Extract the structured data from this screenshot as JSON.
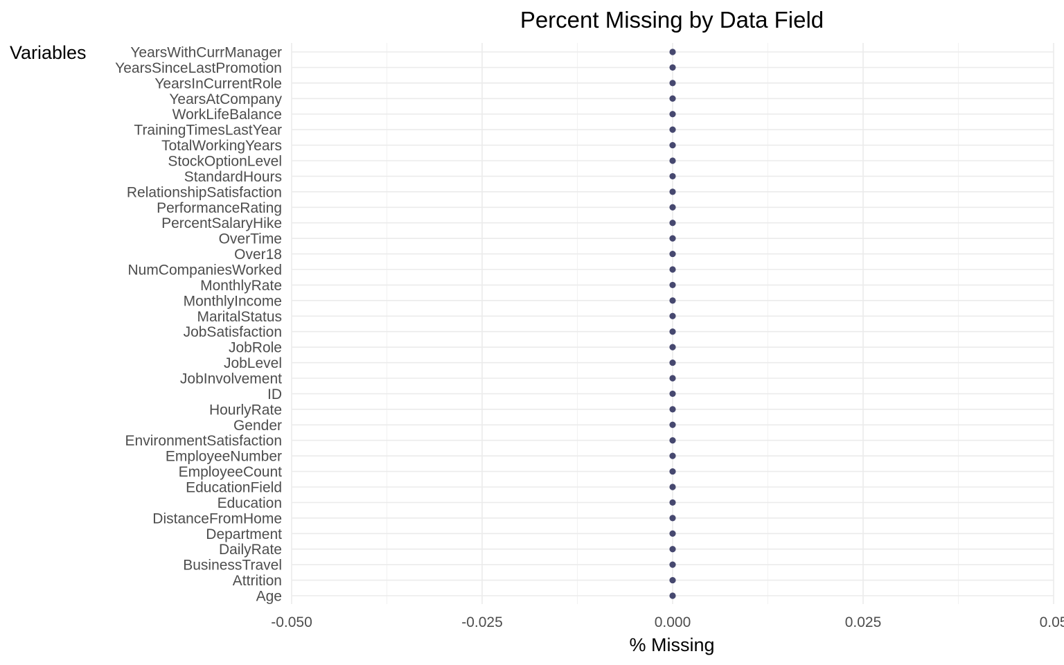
{
  "chart_data": {
    "type": "scatter",
    "title": "Percent Missing by Data Field",
    "xlabel": "% Missing",
    "ylabel": "Variables",
    "xlim": [
      -0.05,
      0.05
    ],
    "x_ticks": [
      "-0.050",
      "-0.025",
      "0.000",
      "0.025",
      "0.05"
    ],
    "x_tick_values": [
      -0.05,
      -0.025,
      0,
      0.025,
      0.05
    ],
    "point_color": "#46486f",
    "grid": true,
    "legend": "none",
    "categories": [
      "Age",
      "Attrition",
      "BusinessTravel",
      "DailyRate",
      "Department",
      "DistanceFromHome",
      "Education",
      "EducationField",
      "EmployeeCount",
      "EmployeeNumber",
      "EnvironmentSatisfaction",
      "Gender",
      "HourlyRate",
      "ID",
      "JobInvolvement",
      "JobLevel",
      "JobRole",
      "JobSatisfaction",
      "MaritalStatus",
      "MonthlyIncome",
      "MonthlyRate",
      "NumCompaniesWorked",
      "Over18",
      "OverTime",
      "PercentSalaryHike",
      "PerformanceRating",
      "RelationshipSatisfaction",
      "StandardHours",
      "StockOptionLevel",
      "TotalWorkingYears",
      "TrainingTimesLastYear",
      "WorkLifeBalance",
      "YearsAtCompany",
      "YearsInCurrentRole",
      "YearsSinceLastPromotion",
      "YearsWithCurrManager"
    ],
    "values": [
      0,
      0,
      0,
      0,
      0,
      0,
      0,
      0,
      0,
      0,
      0,
      0,
      0,
      0,
      0,
      0,
      0,
      0,
      0,
      0,
      0,
      0,
      0,
      0,
      0,
      0,
      0,
      0,
      0,
      0,
      0,
      0,
      0,
      0,
      0,
      0
    ]
  }
}
